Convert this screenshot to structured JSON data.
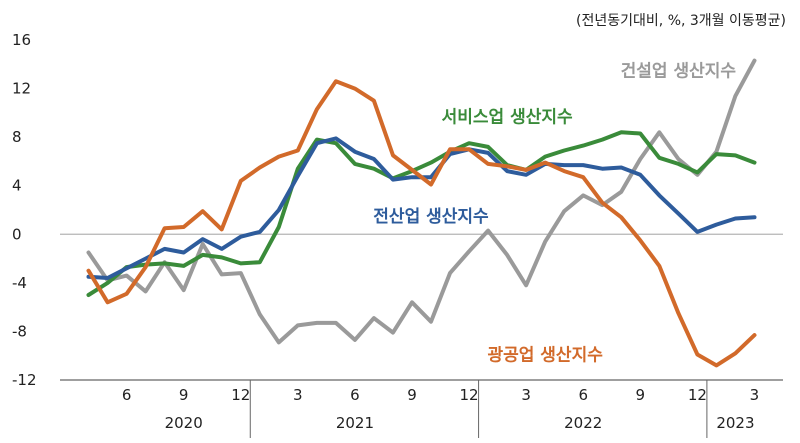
{
  "chart_data": {
    "type": "line",
    "unit_note": "(전년동기대비, %, 3개월 이동평균)",
    "ylim": [
      -12,
      16
    ],
    "yticks": [
      16,
      12,
      8,
      4,
      0,
      -4,
      -8,
      -12
    ],
    "x_start": "2020-03",
    "x_end": "2023-04",
    "month_ticks": [
      {
        "x": "2020-06",
        "label": "6"
      },
      {
        "x": "2020-09",
        "label": "9"
      },
      {
        "x": "2020-12",
        "label": "12"
      },
      {
        "x": "2021-03",
        "label": "3"
      },
      {
        "x": "2021-06",
        "label": "6"
      },
      {
        "x": "2021-09",
        "label": "9"
      },
      {
        "x": "2021-12",
        "label": "12"
      },
      {
        "x": "2022-03",
        "label": "3"
      },
      {
        "x": "2022-06",
        "label": "6"
      },
      {
        "x": "2022-09",
        "label": "9"
      },
      {
        "x": "2022-12",
        "label": "12"
      },
      {
        "x": "2023-03",
        "label": "3"
      }
    ],
    "year_labels": [
      {
        "x": "2020-09",
        "label": "2020"
      },
      {
        "x": "2021-06",
        "label": "2021"
      },
      {
        "x": "2022-06",
        "label": "2022"
      },
      {
        "x": "2023-02",
        "label": "2023"
      }
    ],
    "series": [
      {
        "name": "건설업 생산지수",
        "color": "#9a9a9a",
        "x": [
          "2020-04",
          "2020-05",
          "2020-06",
          "2020-07",
          "2020-08",
          "2020-09",
          "2020-10",
          "2020-11",
          "2020-12",
          "2021-01",
          "2021-02",
          "2021-03",
          "2021-04",
          "2021-05",
          "2021-06",
          "2021-07",
          "2021-08",
          "2021-09",
          "2021-10",
          "2021-11",
          "2021-12",
          "2022-01",
          "2022-02",
          "2022-03",
          "2022-04",
          "2022-05",
          "2022-06",
          "2022-07",
          "2022-08",
          "2022-09",
          "2022-10",
          "2022-11",
          "2022-12",
          "2023-01",
          "2023-02",
          "2023-03",
          "2023-04"
        ],
        "values": [
          -1.5,
          -3.8,
          -3.4,
          -4.7,
          -2.3,
          -4.6,
          -0.8,
          -3.3,
          -3.2,
          -6.6,
          -8.9,
          -7.5,
          -7.3,
          -7.3,
          -8.7,
          -6.9,
          -8.1,
          -5.6,
          -7.2,
          -3.2,
          -1.4,
          0.3,
          -1.7,
          -4.2,
          -0.6,
          1.9,
          3.2,
          2.4,
          3.5,
          6.2,
          8.4,
          6.2,
          4.9,
          6.8,
          11.4,
          14.3,
          null
        ]
      },
      {
        "name": "서비스업 생산지수",
        "color": "#3a8b3a",
        "x": [
          "2020-04",
          "2020-05",
          "2020-06",
          "2020-07",
          "2020-08",
          "2020-09",
          "2020-10",
          "2020-11",
          "2020-12",
          "2021-01",
          "2021-02",
          "2021-03",
          "2021-04",
          "2021-05",
          "2021-06",
          "2021-07",
          "2021-08",
          "2021-09",
          "2021-10",
          "2021-11",
          "2021-12",
          "2022-01",
          "2022-02",
          "2022-03",
          "2022-04",
          "2022-05",
          "2022-06",
          "2022-07",
          "2022-08",
          "2022-09",
          "2022-10",
          "2022-11",
          "2022-12",
          "2023-01",
          "2023-02",
          "2023-03",
          "2023-04"
        ],
        "values": [
          -5.0,
          -4.0,
          -2.7,
          -2.5,
          -2.4,
          -2.6,
          -1.7,
          -1.9,
          -2.4,
          -2.3,
          0.6,
          5.4,
          7.8,
          7.5,
          5.8,
          5.4,
          4.6,
          5.2,
          5.9,
          6.8,
          7.5,
          7.2,
          5.7,
          5.3,
          6.4,
          6.9,
          7.3,
          7.8,
          8.4,
          8.3,
          6.3,
          5.8,
          5.1,
          6.6,
          6.5,
          5.9,
          null
        ]
      },
      {
        "name": "전산업 생산지수",
        "color": "#2e5c9c",
        "x": [
          "2020-04",
          "2020-05",
          "2020-06",
          "2020-07",
          "2020-08",
          "2020-09",
          "2020-10",
          "2020-11",
          "2020-12",
          "2021-01",
          "2021-02",
          "2021-03",
          "2021-04",
          "2021-05",
          "2021-06",
          "2021-07",
          "2021-08",
          "2021-09",
          "2021-10",
          "2021-11",
          "2021-12",
          "2022-01",
          "2022-02",
          "2022-03",
          "2022-04",
          "2022-05",
          "2022-06",
          "2022-07",
          "2022-08",
          "2022-09",
          "2022-10",
          "2022-11",
          "2022-12",
          "2023-01",
          "2023-02",
          "2023-03",
          "2023-04"
        ],
        "values": [
          -3.5,
          -3.6,
          -2.8,
          -2.0,
          -1.2,
          -1.5,
          -0.4,
          -1.2,
          -0.2,
          0.2,
          2.0,
          4.8,
          7.5,
          7.9,
          6.8,
          6.2,
          4.5,
          4.7,
          4.7,
          6.6,
          7.0,
          6.7,
          5.2,
          4.9,
          5.8,
          5.7,
          5.7,
          5.4,
          5.5,
          4.9,
          3.2,
          1.7,
          0.2,
          0.8,
          1.3,
          1.4,
          null
        ]
      },
      {
        "name": "광공업 생산지수",
        "color": "#d26a2a",
        "x": [
          "2020-04",
          "2020-05",
          "2020-06",
          "2020-07",
          "2020-08",
          "2020-09",
          "2020-10",
          "2020-11",
          "2020-12",
          "2021-01",
          "2021-02",
          "2021-03",
          "2021-04",
          "2021-05",
          "2021-06",
          "2021-07",
          "2021-08",
          "2021-09",
          "2021-10",
          "2021-11",
          "2021-12",
          "2022-01",
          "2022-02",
          "2022-03",
          "2022-04",
          "2022-05",
          "2022-06",
          "2022-07",
          "2022-08",
          "2022-09",
          "2022-10",
          "2022-11",
          "2022-12",
          "2023-01",
          "2023-02",
          "2023-03",
          "2023-04"
        ],
        "values": [
          -3.0,
          -5.6,
          -4.9,
          -2.7,
          0.5,
          0.6,
          1.9,
          0.4,
          4.4,
          5.5,
          6.4,
          6.9,
          10.3,
          12.6,
          12.0,
          11.0,
          6.5,
          5.3,
          4.1,
          7.0,
          7.0,
          5.8,
          5.6,
          5.3,
          5.9,
          5.2,
          4.7,
          2.6,
          1.4,
          -0.5,
          -2.6,
          -6.5,
          -9.9,
          -10.8,
          -9.8,
          -8.3,
          null
        ]
      }
    ],
    "series_labels": [
      {
        "series": 0,
        "text": "건설업 생산지수",
        "x": "2022-11",
        "y": 13.5
      },
      {
        "series": 1,
        "text": "서비스업 생산지수",
        "x": "2022-02",
        "y": 9.7
      },
      {
        "series": 2,
        "text": "전산업 생산지수",
        "x": "2021-10",
        "y": 1.5
      },
      {
        "series": 3,
        "text": "광공업 생산지수",
        "x": "2022-04",
        "y": -9.9
      }
    ]
  }
}
